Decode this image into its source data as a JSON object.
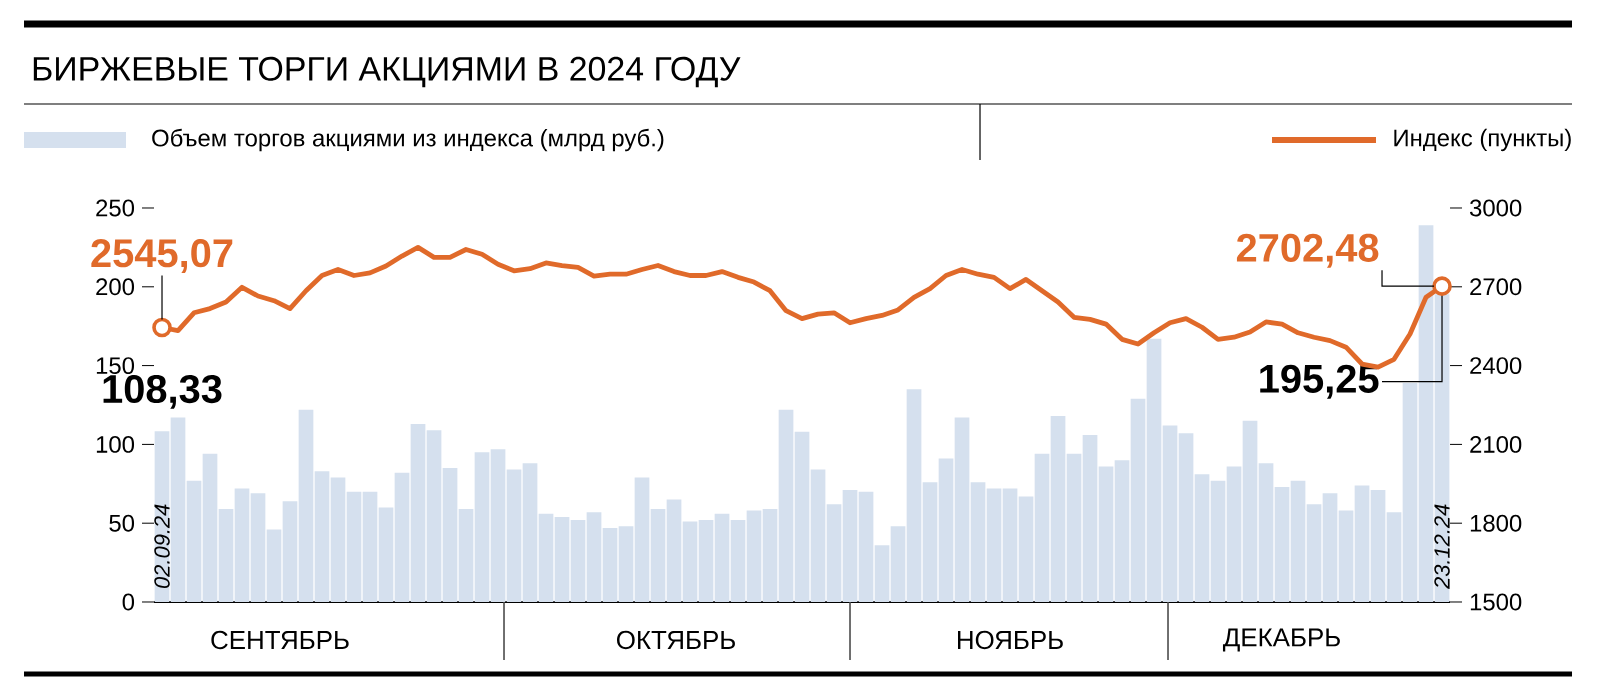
{
  "chart_data": {
    "type": "bar",
    "title": "БИРЖЕВЫЕ ТОРГИ АКЦИЯМИ В 2024 ГОДУ",
    "categories": [
      null,
      null,
      null,
      null,
      null,
      null,
      null,
      null,
      null,
      null,
      null,
      null,
      null,
      null,
      null,
      null,
      null,
      null,
      null,
      null,
      null,
      null,
      null,
      null,
      null,
      null,
      null,
      null,
      null,
      null,
      null,
      null,
      null,
      null,
      null,
      null,
      null,
      null,
      null,
      null,
      null,
      null,
      null,
      null,
      null,
      null,
      null,
      null,
      null,
      null,
      null,
      null,
      null,
      null,
      null,
      null,
      null,
      null,
      null,
      null,
      null,
      null,
      null,
      null,
      null,
      null,
      null,
      null,
      null,
      null,
      null,
      null,
      null,
      null,
      null,
      null,
      null,
      null,
      null,
      null,
      null
    ],
    "series": [
      {
        "name": "Объем торгов акциями из индекса (млрд руб.)",
        "color": "#d5e0ee",
        "values": [
          108.33,
          117,
          77,
          94,
          59,
          72,
          69,
          46,
          64,
          122,
          83,
          79,
          70,
          70,
          60,
          82,
          113,
          109,
          85,
          59,
          95,
          97,
          84,
          88,
          56,
          54,
          52,
          57,
          47,
          48,
          79,
          59,
          65,
          51,
          52,
          56,
          52,
          58,
          59,
          122,
          108,
          84,
          62,
          71,
          70,
          36,
          48,
          135,
          76,
          91,
          117,
          76,
          72,
          72,
          67,
          94,
          118,
          94,
          106,
          86,
          90,
          129,
          167,
          112,
          107,
          81,
          77,
          86,
          115,
          88,
          73,
          77,
          62,
          69,
          58,
          74,
          71,
          57,
          139,
          239,
          195.25
        ],
        "value_labels": [
          "108,33",
          null,
          null,
          null,
          null,
          null,
          null,
          null,
          null,
          null,
          null,
          null,
          null,
          null,
          null,
          null,
          null,
          null,
          null,
          null,
          null,
          null,
          null,
          null,
          null,
          null,
          null,
          null,
          null,
          null,
          null,
          null,
          null,
          null,
          null,
          null,
          null,
          null,
          null,
          null,
          null,
          null,
          null,
          null,
          null,
          null,
          null,
          null,
          null,
          null,
          null,
          null,
          null,
          null,
          null,
          null,
          null,
          null,
          null,
          null,
          null,
          null,
          null,
          null,
          null,
          null,
          null,
          null,
          null,
          null,
          null,
          null,
          null,
          null,
          null,
          null,
          null,
          null,
          null,
          null,
          "195,25"
        ]
      },
      {
        "name": "Индекс (пункты)",
        "type": "line",
        "axis": "y2",
        "color": "#e06a2a",
        "values": [
          2545.07,
          2533,
          2601,
          2617,
          2642,
          2698,
          2665,
          2647,
          2617,
          2685,
          2743,
          2766,
          2743,
          2753,
          2779,
          2817,
          2850,
          2812,
          2812,
          2842,
          2824,
          2786,
          2761,
          2769,
          2791,
          2781,
          2774,
          2741,
          2748,
          2748,
          2766,
          2781,
          2758,
          2743,
          2743,
          2758,
          2736,
          2718,
          2685,
          2609,
          2579,
          2596,
          2601,
          2563,
          2579,
          2591,
          2612,
          2660,
          2693,
          2743,
          2766,
          2748,
          2736,
          2693,
          2728,
          2685,
          2642,
          2584,
          2576,
          2558,
          2500,
          2482,
          2525,
          2563,
          2579,
          2546,
          2500,
          2508,
          2528,
          2566,
          2558,
          2525,
          2508,
          2495,
          2470,
          2406,
          2394,
          2424,
          2520,
          2660,
          2702.48
        ],
        "value_labels": [
          "2545,07",
          null,
          null,
          null,
          null,
          null,
          null,
          null,
          null,
          null,
          null,
          null,
          null,
          null,
          null,
          null,
          null,
          null,
          null,
          null,
          null,
          null,
          null,
          null,
          null,
          null,
          null,
          null,
          null,
          null,
          null,
          null,
          null,
          null,
          null,
          null,
          null,
          null,
          null,
          null,
          null,
          null,
          null,
          null,
          null,
          null,
          null,
          null,
          null,
          null,
          null,
          null,
          null,
          null,
          null,
          null,
          null,
          null,
          null,
          null,
          null,
          null,
          null,
          null,
          null,
          null,
          null,
          null,
          null,
          null,
          null,
          null,
          null,
          null,
          null,
          null,
          null,
          null,
          null,
          null,
          "2702,48"
        ]
      }
    ],
    "ylim": [
      0,
      250
    ],
    "yticks": [
      0,
      50,
      100,
      150,
      200,
      250
    ],
    "y2lim": [
      1500,
      3000
    ],
    "y2ticks": [
      1500,
      1800,
      2100,
      2400,
      2700,
      3000
    ],
    "legend": "top",
    "annotations": [
      "02.09.24",
      "23.12.24",
      "СЕНТЯБРЬ",
      "ОКТЯБРЬ",
      "НОЯБРЬ",
      "ДЕКАБРЬ"
    ]
  }
}
